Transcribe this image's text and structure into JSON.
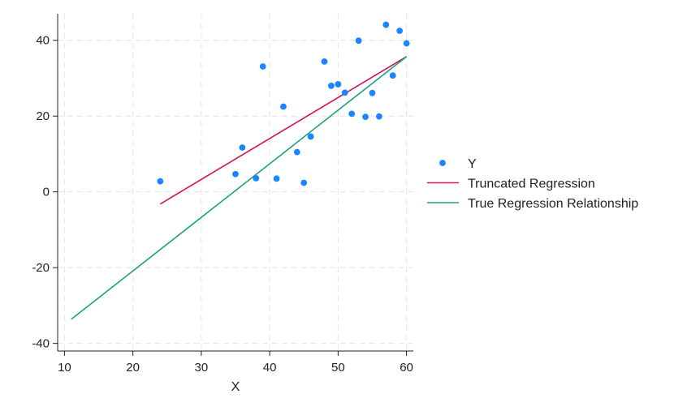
{
  "chart_data": {
    "type": "scatter",
    "title": "",
    "xlabel": "X",
    "ylabel": "",
    "xlim": [
      9,
      61
    ],
    "ylim": [
      -42,
      47
    ],
    "xticks": [
      10,
      20,
      30,
      40,
      50,
      60
    ],
    "xtick_labels": [
      "10",
      "20",
      "30",
      "40",
      "50",
      "60"
    ],
    "yticks": [
      -40,
      -20,
      0,
      20,
      40
    ],
    "ytick_labels": [
      "-40",
      "-20",
      "0",
      "20",
      "40"
    ],
    "grid": true,
    "legend_position": "right",
    "series": [
      {
        "name": "Y",
        "kind": "scatter",
        "color": "#1a85ff",
        "points": [
          [
            24,
            2.8
          ],
          [
            35,
            4.7
          ],
          [
            36,
            11.7
          ],
          [
            38,
            3.6
          ],
          [
            39,
            33.1
          ],
          [
            41,
            3.5
          ],
          [
            42,
            22.5
          ],
          [
            44,
            10.5
          ],
          [
            45,
            2.4
          ],
          [
            46,
            14.6
          ],
          [
            48,
            34.4
          ],
          [
            49,
            28.0
          ],
          [
            50,
            28.4
          ],
          [
            51,
            26.2
          ],
          [
            52,
            20.6
          ],
          [
            53,
            39.9
          ],
          [
            54,
            19.8
          ],
          [
            55,
            26.1
          ],
          [
            56,
            19.9
          ],
          [
            57,
            44.1
          ],
          [
            58,
            30.7
          ],
          [
            59,
            42.5
          ],
          [
            60,
            39.2
          ]
        ]
      },
      {
        "name": "Truncated Regression",
        "kind": "line",
        "color": "#d41159",
        "points": [
          [
            24,
            -3.2
          ],
          [
            60,
            35.7
          ]
        ]
      },
      {
        "name": "True Regression Relationship",
        "kind": "line",
        "color": "#1aa37a",
        "points": [
          [
            11,
            -33.6
          ],
          [
            60,
            35.7
          ]
        ]
      }
    ]
  }
}
